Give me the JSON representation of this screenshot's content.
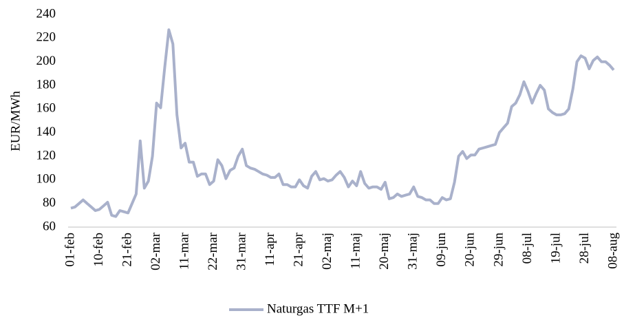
{
  "chart_data": {
    "type": "line",
    "y_label": "EUR/MWh",
    "categories": [
      "01-feb",
      null,
      null,
      null,
      null,
      null,
      null,
      "10-feb",
      null,
      null,
      null,
      null,
      null,
      null,
      "21-feb",
      null,
      null,
      null,
      null,
      null,
      null,
      "02-mar",
      null,
      null,
      null,
      null,
      null,
      null,
      "11-mar",
      null,
      null,
      null,
      null,
      null,
      null,
      "22-mar",
      null,
      null,
      null,
      null,
      null,
      null,
      "31-mar",
      null,
      null,
      null,
      null,
      null,
      null,
      "11-apr",
      null,
      null,
      null,
      null,
      null,
      null,
      "21-apr",
      null,
      null,
      null,
      null,
      null,
      null,
      "02-maj",
      null,
      null,
      null,
      null,
      null,
      null,
      "11-maj",
      null,
      null,
      null,
      null,
      null,
      null,
      "20-maj",
      null,
      null,
      null,
      null,
      null,
      null,
      "31-maj",
      null,
      null,
      null,
      null,
      null,
      null,
      "09-jun",
      null,
      null,
      null,
      null,
      null,
      null,
      "20-jun",
      null,
      null,
      null,
      null,
      null,
      null,
      "29-jun",
      null,
      null,
      null,
      null,
      null,
      null,
      "08-jul",
      null,
      null,
      null,
      null,
      null,
      null,
      "19-jul",
      null,
      null,
      null,
      null,
      null,
      null,
      "28-jul",
      null,
      null,
      null,
      null,
      null,
      null,
      "08-aug"
    ],
    "series": [
      {
        "name": "Naturgas TTF M+1",
        "color": "#a9b1cb",
        "values": [
          76,
          77,
          80,
          83,
          80,
          77,
          74,
          75,
          78,
          81,
          70,
          69,
          74,
          73,
          72,
          80,
          88,
          133,
          93,
          99,
          120,
          165,
          161,
          195,
          227,
          215,
          155,
          127,
          131,
          115,
          115,
          103,
          105,
          105,
          96,
          99,
          117,
          112,
          101,
          108,
          110,
          120,
          126,
          112,
          110,
          109,
          107,
          105,
          104,
          102,
          102,
          105,
          96,
          96,
          94,
          94,
          100,
          95,
          93,
          103,
          107,
          100,
          101,
          99,
          100,
          104,
          107,
          102,
          94,
          99,
          95,
          107,
          97,
          93,
          94,
          94,
          92,
          98,
          84,
          85,
          88,
          86,
          87,
          88,
          94,
          86,
          85,
          83,
          83,
          80,
          80,
          85,
          83,
          84,
          98,
          120,
          124,
          118,
          121,
          121,
          126,
          127,
          128,
          129,
          130,
          140,
          144,
          148,
          162,
          165,
          172,
          183,
          175,
          165,
          173,
          180,
          176,
          160,
          157,
          155,
          155,
          156,
          160,
          177,
          200,
          205,
          203,
          194,
          201,
          204,
          200,
          200,
          197,
          193
        ]
      }
    ],
    "ylim": [
      60,
      240
    ],
    "yticks": [
      60,
      80,
      100,
      120,
      140,
      160,
      180,
      200,
      220,
      240
    ],
    "grid": false,
    "legend": "bottom"
  }
}
